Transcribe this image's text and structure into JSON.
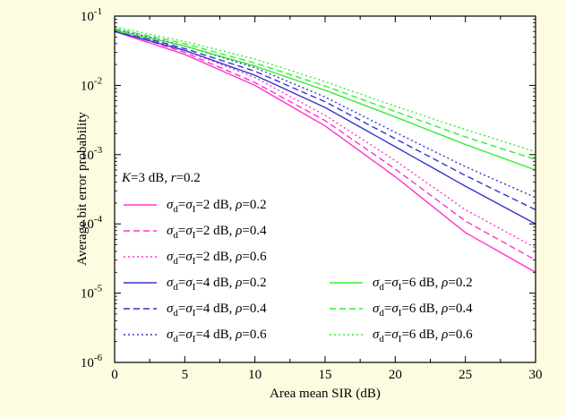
{
  "colors": {
    "background": "#fdfbe0",
    "plot_area": "#ffffff",
    "magenta": "#ff33cc",
    "blue": "#3333cc",
    "green": "#33ee33"
  },
  "chart_data": {
    "type": "line",
    "title": "",
    "xlabel": "Area mean SIR (dB)",
    "ylabel": "Average bit error probability",
    "xlim": [
      0,
      30
    ],
    "ylim": [
      1e-06,
      0.1
    ],
    "yscale": "log",
    "grid": false,
    "legend_placement": "bottom",
    "x_ticks": [
      "0",
      "5",
      "10",
      "15",
      "20",
      "25",
      "30"
    ],
    "y_ticks": [
      {
        "base": "10",
        "exp": "-6",
        "value": 1e-06
      },
      {
        "base": "10",
        "exp": "-5",
        "value": 1e-05
      },
      {
        "base": "10",
        "exp": "-4",
        "value": 0.0001
      },
      {
        "base": "10",
        "exp": "-3",
        "value": 0.001
      },
      {
        "base": "10",
        "exp": "-2",
        "value": 0.01
      },
      {
        "base": "10",
        "exp": "-1",
        "value": 0.1
      }
    ],
    "annotation": {
      "k_var": "K",
      "k_text": "=3 dB, ",
      "r_var": "r",
      "r_text": "=0.2"
    },
    "x": [
      0,
      5,
      10,
      15,
      20,
      25,
      30
    ],
    "series": [
      {
        "sigma": "2",
        "rho": "0.2",
        "color": "magenta",
        "dash": "solid",
        "values": [
          0.06,
          0.028,
          0.01,
          0.0026,
          0.00048,
          7.5e-05,
          2e-05
        ]
      },
      {
        "sigma": "2",
        "rho": "0.4",
        "color": "magenta",
        "dash": "dashed",
        "values": [
          0.063,
          0.03,
          0.011,
          0.0031,
          0.00062,
          0.00011,
          3e-05
        ]
      },
      {
        "sigma": "2",
        "rho": "0.6",
        "color": "magenta",
        "dash": "dotted",
        "values": [
          0.066,
          0.032,
          0.013,
          0.0037,
          0.00082,
          0.00016,
          4.5e-05
        ]
      },
      {
        "sigma": "4",
        "rho": "0.2",
        "color": "blue",
        "dash": "solid",
        "values": [
          0.06,
          0.032,
          0.014,
          0.0048,
          0.0013,
          0.00035,
          0.0001
        ]
      },
      {
        "sigma": "4",
        "rho": "0.4",
        "color": "blue",
        "dash": "dashed",
        "values": [
          0.063,
          0.034,
          0.016,
          0.0058,
          0.0017,
          0.0005,
          0.00016
        ]
      },
      {
        "sigma": "4",
        "rho": "0.6",
        "color": "blue",
        "dash": "dotted",
        "values": [
          0.066,
          0.037,
          0.018,
          0.0068,
          0.0021,
          0.00067,
          0.00024
        ]
      },
      {
        "sigma": "6",
        "rho": "0.2",
        "color": "green",
        "dash": "solid",
        "values": [
          0.062,
          0.037,
          0.019,
          0.0085,
          0.0035,
          0.0014,
          0.0006
        ]
      },
      {
        "sigma": "6",
        "rho": "0.4",
        "color": "green",
        "dash": "dashed",
        "values": [
          0.066,
          0.04,
          0.021,
          0.0098,
          0.0042,
          0.0018,
          0.00085
        ]
      },
      {
        "sigma": "6",
        "rho": "0.6",
        "color": "green",
        "dash": "dotted",
        "values": [
          0.07,
          0.043,
          0.024,
          0.0113,
          0.005,
          0.0023,
          0.0011
        ]
      }
    ]
  }
}
